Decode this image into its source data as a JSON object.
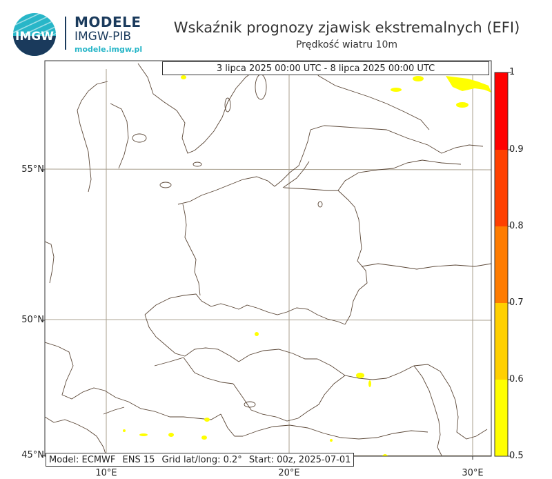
{
  "header": {
    "logo_mark_text": "IMGW",
    "brand_line1": "MODELE",
    "brand_line2": "IMGW-PIB",
    "brand_url": "modele.imgw.pl",
    "title": "Wskaźnik prognozy zjawisk ekstremalnych (EFI)",
    "subtitle": "Prędkość wiatru 10m"
  },
  "map": {
    "period": "3 lipca 2025 00:00 UTC - 8 lipca 2025 00:00 UTC",
    "lat_labels": [
      "55°N",
      "50°N",
      "45°N"
    ],
    "lon_labels": [
      "10°E",
      "20°E",
      "30°E"
    ],
    "info": {
      "model": "Model: ECMWF",
      "ens": "ENS 15",
      "grid": "Grid lat/long: 0.2°",
      "start": "Start: 00z, 2025-07-01"
    }
  },
  "colorbar": {
    "ticks": [
      "1",
      "0.9",
      "0.8",
      "0.7",
      "0.6",
      "0.5"
    ],
    "colors": [
      "#ff0000",
      "#ff4000",
      "#ff7c00",
      "#ffa800",
      "#ffd000",
      "#ffff00"
    ]
  }
}
